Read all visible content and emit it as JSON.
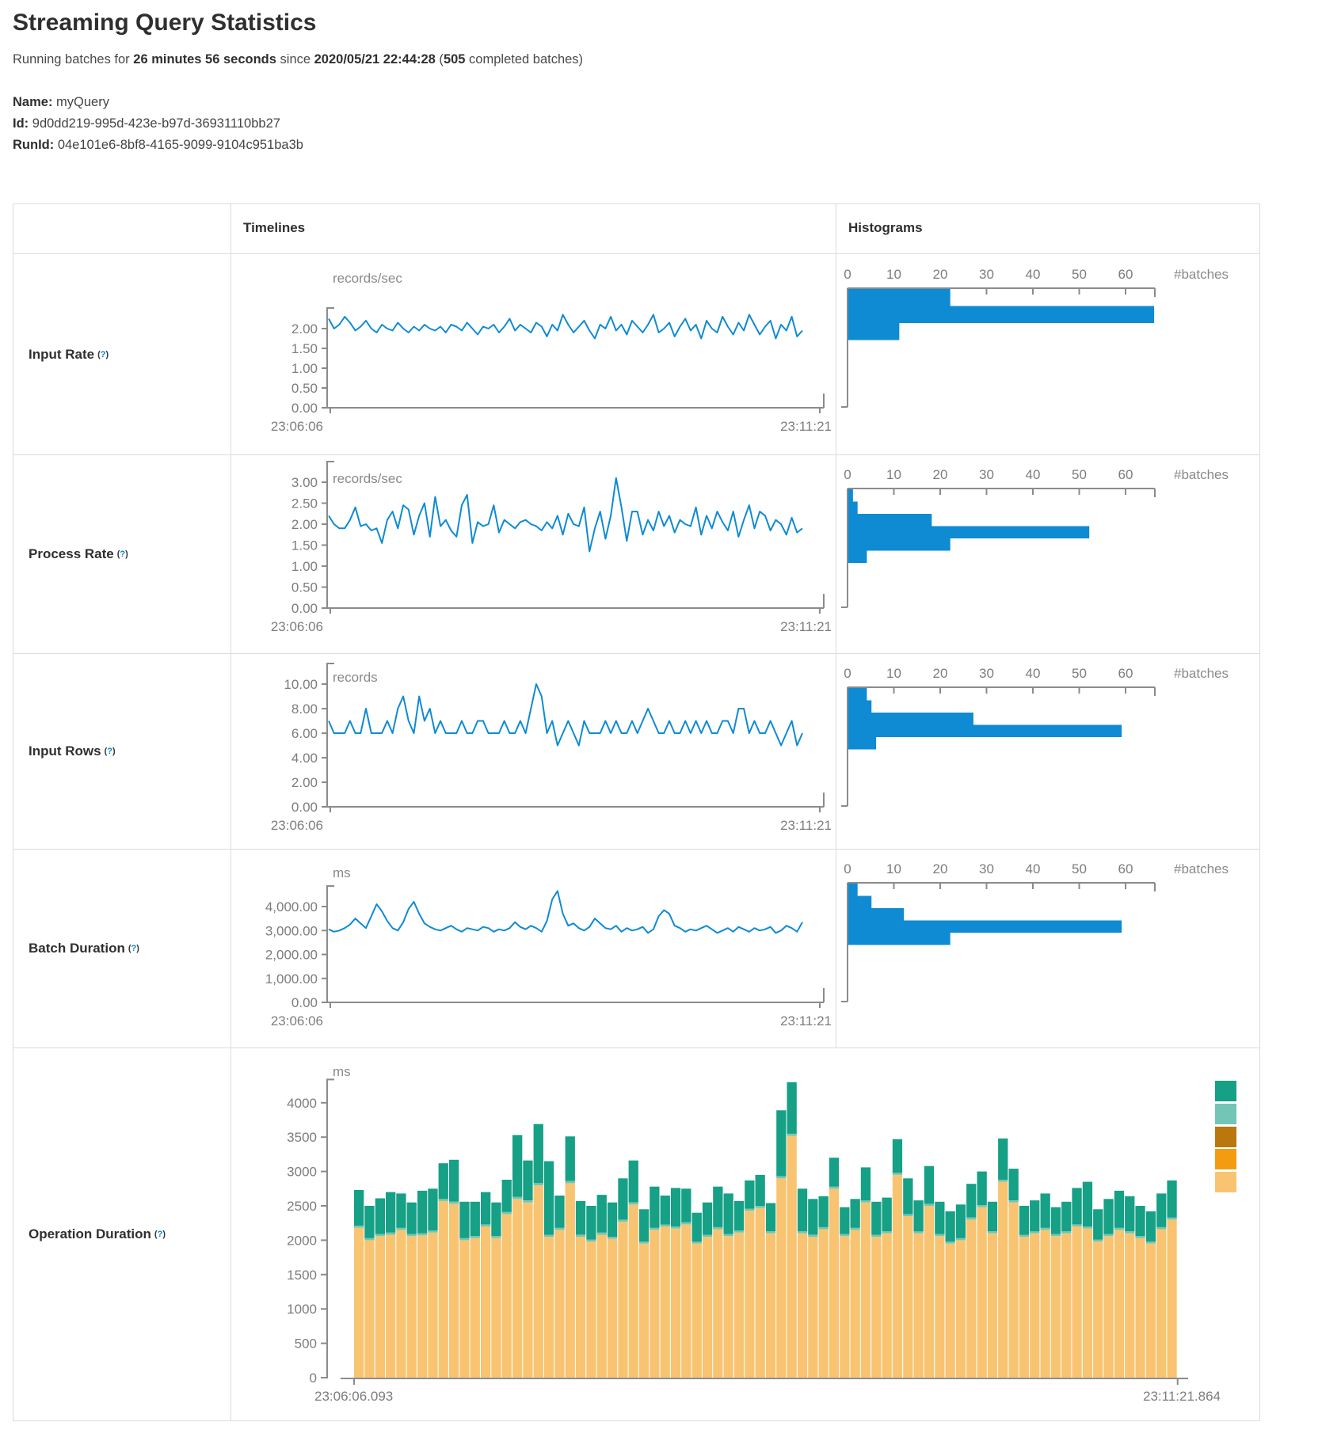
{
  "page": {
    "title": "Streaming Query Statistics",
    "subtitle_parts": [
      {
        "text": "Running batches for ",
        "bold": false
      },
      {
        "text": "26 minutes 56 seconds",
        "bold": true
      },
      {
        "text": " since ",
        "bold": false
      },
      {
        "text": "2020/05/21 22:44:28",
        "bold": true
      },
      {
        "text": " (",
        "bold": false
      },
      {
        "text": "505",
        "bold": true
      },
      {
        "text": " completed batches)",
        "bold": false
      }
    ],
    "meta": [
      {
        "key": "Name:",
        "value": "myQuery"
      },
      {
        "key": "Id:",
        "value": "9d0dd219-995d-423e-b97d-36931110bb27"
      },
      {
        "key": "RunId:",
        "value": "04e101e6-8bf8-4165-9099-9104c951ba3b"
      }
    ]
  },
  "table": {
    "header": {
      "timelines": "Timelines",
      "histograms": "Histograms"
    },
    "help_marker": "?",
    "batches_label": "#batches",
    "rows": [
      {
        "label": "Input Rate"
      },
      {
        "label": "Process Rate"
      },
      {
        "label": "Input Rows"
      },
      {
        "label": "Batch Duration"
      },
      {
        "label": "Operation Duration"
      }
    ]
  },
  "colors": {
    "accent_blue": "#0e8bd3",
    "axis_gray": "#8b8b8b",
    "operation_palette": [
      "#16A085",
      "#73C6B6",
      "#B9770E",
      "#F39C12",
      "#F8C471"
    ]
  },
  "chart_data": [
    {
      "id": "input-rate",
      "type": "line",
      "title": "Input Rate",
      "unit": "records/sec",
      "x_start": "23:06:06",
      "x_end": "23:11:21",
      "y_ticks": [
        {
          "v": 2,
          "t": "2.00"
        },
        {
          "v": 1.5,
          "t": "1.50"
        },
        {
          "v": 1,
          "t": "1.00"
        },
        {
          "v": 0.5,
          "t": "0.50"
        },
        {
          "v": 0,
          "t": "0.00"
        }
      ],
      "values": [
        2.25,
        2.0,
        2.1,
        2.3,
        2.15,
        1.95,
        2.05,
        2.2,
        2.0,
        1.9,
        2.1,
        2.0,
        1.95,
        2.15,
        2.0,
        1.9,
        2.05,
        1.95,
        2.1,
        2.0,
        1.95,
        2.05,
        1.9,
        2.1,
        2.05,
        1.95,
        2.15,
        2.0,
        1.85,
        2.05,
        2.0,
        2.1,
        1.9,
        2.05,
        2.25,
        1.95,
        2.1,
        2.0,
        1.9,
        2.15,
        2.05,
        1.8,
        2.1,
        1.95,
        2.35,
        2.1,
        1.9,
        2.05,
        2.2,
        1.95,
        1.75,
        2.1,
        2.0,
        2.3,
        1.95,
        2.1,
        1.85,
        2.2,
        2.05,
        1.9,
        2.1,
        2.35,
        1.9,
        2.0,
        2.15,
        1.8,
        2.05,
        2.25,
        1.95,
        2.1,
        1.75,
        2.2,
        2.0,
        1.9,
        2.3,
        2.05,
        1.85,
        2.15,
        1.95,
        2.35,
        2.1,
        1.85,
        2.05,
        2.2,
        1.75,
        2.1,
        1.95,
        2.3,
        1.8,
        1.95
      ],
      "histogram": {
        "tick_values": [
          0,
          10,
          20,
          30,
          40,
          50,
          60
        ],
        "bars": [
          22,
          66,
          11
        ],
        "unit": "#batches"
      }
    },
    {
      "id": "process-rate",
      "type": "line",
      "title": "Process Rate",
      "unit": "records/sec",
      "x_start": "23:06:06",
      "x_end": "23:11:21",
      "y_ticks": [
        {
          "v": 3,
          "t": "3.00"
        },
        {
          "v": 2.5,
          "t": "2.50"
        },
        {
          "v": 2,
          "t": "2.00"
        },
        {
          "v": 1.5,
          "t": "1.50"
        },
        {
          "v": 1,
          "t": "1.00"
        },
        {
          "v": 0.5,
          "t": "0.50"
        },
        {
          "v": 0,
          "t": "0.00"
        }
      ],
      "values": [
        2.2,
        2.0,
        1.9,
        1.9,
        2.1,
        2.4,
        1.95,
        2.0,
        1.85,
        1.9,
        1.55,
        2.1,
        2.3,
        1.9,
        2.45,
        2.35,
        1.75,
        2.2,
        2.5,
        1.7,
        2.65,
        1.95,
        2.1,
        1.85,
        1.7,
        2.45,
        2.7,
        1.55,
        2.05,
        1.95,
        2.0,
        2.45,
        1.8,
        2.1,
        2.0,
        1.9,
        2.05,
        2.1,
        2.0,
        1.95,
        1.85,
        2.05,
        1.9,
        2.2,
        1.75,
        2.25,
        2.0,
        1.95,
        2.4,
        1.35,
        1.9,
        2.3,
        1.65,
        2.2,
        3.1,
        2.4,
        1.6,
        2.3,
        2.3,
        1.75,
        2.1,
        1.85,
        2.3,
        1.95,
        2.2,
        1.8,
        2.1,
        2.0,
        1.95,
        2.4,
        1.75,
        2.2,
        1.9,
        2.3,
        2.05,
        1.85,
        2.3,
        1.7,
        2.1,
        2.45,
        1.9,
        2.3,
        2.2,
        1.85,
        2.1,
        2.0,
        1.75,
        2.15,
        1.8,
        1.9
      ],
      "histogram": {
        "tick_values": [
          0,
          10,
          20,
          30,
          40,
          50,
          60
        ],
        "bars": [
          1,
          2,
          18,
          52,
          22,
          4
        ],
        "unit": "#batches"
      }
    },
    {
      "id": "input-rows",
      "type": "line",
      "title": "Input Rows",
      "unit": "records",
      "x_start": "23:06:06",
      "x_end": "23:11:21",
      "y_ticks": [
        {
          "v": 10,
          "t": "10.00"
        },
        {
          "v": 8,
          "t": "8.00"
        },
        {
          "v": 6,
          "t": "6.00"
        },
        {
          "v": 4,
          "t": "4.00"
        },
        {
          "v": 2,
          "t": "2.00"
        },
        {
          "v": 0,
          "t": "0.00"
        }
      ],
      "values": [
        7,
        6,
        6,
        6,
        7,
        6,
        6,
        8,
        6,
        6,
        6,
        7,
        6,
        8,
        9,
        7,
        6,
        9,
        7,
        8,
        6,
        7,
        6,
        6,
        6,
        7,
        6,
        6,
        7,
        7,
        6,
        6,
        6,
        7,
        6,
        6,
        7,
        6,
        8,
        10,
        9,
        6,
        7,
        5,
        6,
        7,
        6,
        5,
        7,
        6,
        6,
        6,
        7,
        6,
        7,
        6,
        6,
        7,
        6,
        7,
        8,
        7,
        6,
        6,
        7,
        6,
        6,
        7,
        6,
        7,
        6,
        7,
        6,
        6,
        7,
        7,
        6,
        8,
        8,
        6,
        7,
        6,
        6,
        7,
        6,
        5,
        6,
        7,
        5,
        6
      ],
      "histogram": {
        "tick_values": [
          0,
          10,
          20,
          30,
          40,
          50,
          60
        ],
        "bars": [
          4,
          5,
          27,
          59,
          6
        ],
        "unit": "#batches"
      }
    },
    {
      "id": "batch-duration",
      "type": "line",
      "title": "Batch Duration",
      "unit": "ms",
      "x_start": "23:06:06",
      "x_end": "23:11:21",
      "y_ticks": [
        {
          "v": 4000,
          "t": "4,000.00"
        },
        {
          "v": 3000,
          "t": "3,000.00"
        },
        {
          "v": 2000,
          "t": "2,000.00"
        },
        {
          "v": 1000,
          "t": "1,000.00"
        },
        {
          "v": 0,
          "t": "0.00"
        }
      ],
      "values": [
        3050,
        2950,
        3000,
        3100,
        3250,
        3500,
        3300,
        3100,
        3600,
        4100,
        3800,
        3400,
        3100,
        3000,
        3350,
        3900,
        4200,
        3700,
        3300,
        3150,
        3050,
        3000,
        3100,
        3200,
        3050,
        2950,
        3100,
        3050,
        3000,
        3150,
        3100,
        2950,
        3050,
        3000,
        3100,
        3350,
        3150,
        3050,
        3200,
        3100,
        2950,
        3400,
        4300,
        4650,
        3700,
        3200,
        3300,
        3100,
        3000,
        3150,
        3500,
        3300,
        3100,
        3050,
        3200,
        2950,
        3100,
        3000,
        3050,
        3150,
        2900,
        3050,
        3600,
        3850,
        3700,
        3200,
        3100,
        2950,
        3050,
        3000,
        3100,
        3200,
        3050,
        2900,
        3000,
        3100,
        2950,
        3150,
        3050,
        2950,
        3100,
        3000,
        3050,
        3150,
        2900,
        3000,
        3200,
        3100,
        2950,
        3350
      ],
      "histogram": {
        "tick_values": [
          0,
          10,
          20,
          30,
          40,
          50,
          60
        ],
        "bars": [
          2,
          5,
          12,
          59,
          22
        ],
        "unit": "#batches"
      }
    },
    {
      "id": "operation-duration",
      "type": "stacked-bar",
      "title": "Operation Duration",
      "unit": "ms",
      "x_start": "23:06:06.093",
      "x_end": "23:11:21.864",
      "y_ticks": [
        {
          "v": 4000,
          "t": "4000"
        },
        {
          "v": 3500,
          "t": "3500"
        },
        {
          "v": 3000,
          "t": "3000"
        },
        {
          "v": 2500,
          "t": "2500"
        },
        {
          "v": 2000,
          "t": "2000"
        },
        {
          "v": 1500,
          "t": "1500"
        },
        {
          "v": 1000,
          "t": "1000"
        },
        {
          "v": 500,
          "t": "500"
        },
        {
          "v": 0,
          "t": "0"
        }
      ],
      "legend_colors": [
        "#16A085",
        "#73C6B6",
        "#B9770E",
        "#F39C12",
        "#F8C471"
      ],
      "sliver": 30,
      "tan": [
        2180,
        2000,
        2060,
        2080,
        2150,
        2060,
        2070,
        2110,
        2570,
        2530,
        2000,
        2030,
        2200,
        2030,
        2380,
        2600,
        2550,
        2800,
        2050,
        2150,
        2830,
        2050,
        1980,
        2080,
        2020,
        2270,
        2520,
        1950,
        2150,
        2200,
        2170,
        2230,
        1950,
        2050,
        2160,
        2060,
        2110,
        2430,
        2470,
        2100,
        2900,
        3520,
        2100,
        2050,
        2160,
        2750,
        2060,
        2150,
        2550,
        2050,
        2100,
        2950,
        2350,
        2100,
        2500,
        2060,
        1950,
        2000,
        2300,
        2480,
        2100,
        2850,
        2550,
        2050,
        2100,
        2150,
        2060,
        2100,
        2200,
        2170,
        1980,
        2060,
        2150,
        2100,
        2030,
        1950,
        2160,
        2300
      ],
      "total": [
        2730,
        2500,
        2610,
        2700,
        2680,
        2550,
        2720,
        2750,
        3120,
        3170,
        2560,
        2560,
        2700,
        2550,
        2880,
        3530,
        3160,
        3690,
        3150,
        2650,
        3510,
        2570,
        2500,
        2660,
        2550,
        2900,
        3160,
        2450,
        2780,
        2650,
        2760,
        2750,
        2400,
        2550,
        2780,
        2680,
        2570,
        2870,
        2950,
        2540,
        3890,
        4300,
        2750,
        2600,
        2640,
        3200,
        2480,
        2600,
        3060,
        2560,
        2620,
        3470,
        2900,
        2580,
        3080,
        2560,
        2420,
        2520,
        2820,
        3000,
        2560,
        3480,
        3040,
        2500,
        2580,
        2680,
        2480,
        2560,
        2760,
        2850,
        2450,
        2600,
        2720,
        2640,
        2500,
        2420,
        2680,
        2870
      ]
    }
  ]
}
